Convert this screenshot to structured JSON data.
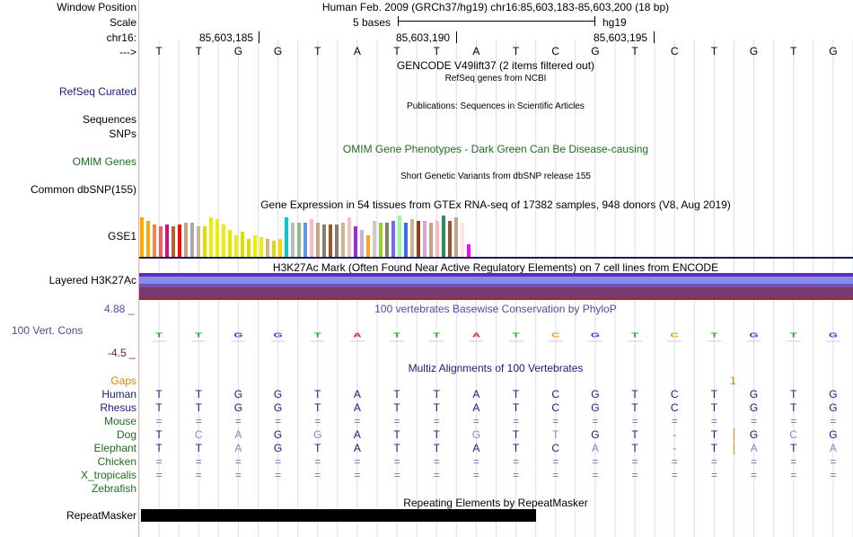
{
  "header": {
    "window_position_label": "Window Position",
    "window_position_value": "Human Feb. 2009 (GRCh37/hg19)   chr16:85,603,183-85,603,200 (18 bp)",
    "scale_label": "Scale",
    "scale_text": "5 bases",
    "scale_assembly": "hg19",
    "chrom_label": "chr16:",
    "coordinates": [
      "85,603,185",
      "85,603,190",
      "85,603,195"
    ],
    "strand_label": "--->"
  },
  "sequence": [
    "T",
    "T",
    "G",
    "G",
    "T",
    "A",
    "T",
    "T",
    "A",
    "T",
    "C",
    "G",
    "T",
    "C",
    "T",
    "G",
    "T",
    "G"
  ],
  "tracks": {
    "gencode_title": "GENCODE V49lift37 (2 items filtered out)",
    "refseq_title": "RefSeq genes from NCBI",
    "refseq_label": "RefSeq Curated",
    "pubs_title": "Publications: Sequences in Scientific Articles",
    "sequences_label": "Sequences",
    "snps_label": "SNPs",
    "omim_title": "OMIM Gene Phenotypes - Dark Green Can Be Disease-causing",
    "omim_label": "OMIM Genes",
    "dbsnp_title": "Short Genetic Variants from dbSNP release 155",
    "dbsnp_label": "Common dbSNP(155)",
    "gtex_title": "Gene Expression in 54 tissues from GTEx RNA-seq of 17382 samples, 948 donors (V8, Aug 2019)",
    "gtex_label": "GSE1",
    "h3k27ac_title": "H3K27Ac Mark (Often Found Near Active Regulatory Elements) on 7 cell lines from ENCODE",
    "h3k27ac_label": "Layered H3K27Ac",
    "cons_title": "100 vertebrates Basewise Conservation by PhyloP",
    "cons_label": "100 Vert. Cons",
    "cons_max": "4.88 _",
    "cons_min": "-4.5 _",
    "multiz_title": "Multiz Alignments of 100 Vertebrates",
    "gaps_label": "Gaps",
    "gaps_mark": "1",
    "repeat_title": "Repeating Elements by RepeatMasker",
    "repeat_label": "RepeatMasker"
  },
  "gtex_bars": [
    {
      "color": "#ffaa00",
      "h": 44
    },
    {
      "color": "#ffaa00",
      "h": 40
    },
    {
      "color": "#ff7f50",
      "h": 36
    },
    {
      "color": "#ff5a5a",
      "h": 34
    },
    {
      "color": "#c71585",
      "h": 36
    },
    {
      "color": "#b5651d",
      "h": 34
    },
    {
      "color": "#ee1111",
      "h": 36
    },
    {
      "color": "#c4a484",
      "h": 38
    },
    {
      "color": "#aaaaaa",
      "h": 38
    },
    {
      "color": "#d2b48c",
      "h": 34
    },
    {
      "color": "#dddd00",
      "h": 34
    },
    {
      "color": "#eeee00",
      "h": 44
    },
    {
      "color": "#eeee00",
      "h": 42
    },
    {
      "color": "#eeee00",
      "h": 36
    },
    {
      "color": "#e5e500",
      "h": 30
    },
    {
      "color": "#eeee00",
      "h": 24
    },
    {
      "color": "#dddd00",
      "h": 28
    },
    {
      "color": "#dddd00",
      "h": 20
    },
    {
      "color": "#eeee00",
      "h": 24
    },
    {
      "color": "#eeee00",
      "h": 22
    },
    {
      "color": "#d2b48c",
      "h": 20
    },
    {
      "color": "#dddd00",
      "h": 18
    },
    {
      "color": "#ffd700",
      "h": 20
    },
    {
      "color": "#00cccc",
      "h": 44
    },
    {
      "color": "#bbbbbb",
      "h": 38
    },
    {
      "color": "#8fbc8f",
      "h": 38
    },
    {
      "color": "#6495ed",
      "h": 38
    },
    {
      "color": "#ffb6c1",
      "h": 42
    },
    {
      "color": "#c4a484",
      "h": 38
    },
    {
      "color": "#8b7d6b",
      "h": 36
    },
    {
      "color": "#a0522d",
      "h": 36
    },
    {
      "color": "#8b7d6b",
      "h": 36
    },
    {
      "color": "#d2b48c",
      "h": 38
    },
    {
      "color": "#f4c2c2",
      "h": 44
    },
    {
      "color": "#9932cc",
      "h": 34
    },
    {
      "color": "#ccaaee",
      "h": 30
    },
    {
      "color": "#f5a623",
      "h": 24
    },
    {
      "color": "#cccccc",
      "h": 40
    },
    {
      "color": "#9acd32",
      "h": 38
    },
    {
      "color": "#8b7d6b",
      "h": 38
    },
    {
      "color": "#7b68ee",
      "h": 40
    },
    {
      "color": "#98fb98",
      "h": 46
    },
    {
      "color": "#4169e1",
      "h": 38
    },
    {
      "color": "#d2b48c",
      "h": 42
    },
    {
      "color": "#8b4513",
      "h": 40
    },
    {
      "color": "#dda0dd",
      "h": 40
    },
    {
      "color": "#c4a484",
      "h": 38
    },
    {
      "color": "#ffb6c1",
      "h": 40
    },
    {
      "color": "#2e8b57",
      "h": 46
    },
    {
      "color": "#a0522d",
      "h": 40
    },
    {
      "color": "#c4a484",
      "h": 44
    },
    {
      "color": "#ffe4e1",
      "h": 38
    },
    {
      "color": "#ff00ff",
      "h": 14
    }
  ],
  "alignments": [
    {
      "species": "Human",
      "bases": [
        "T",
        "T",
        "G",
        "G",
        "T",
        "A",
        "T",
        "T",
        "A",
        "T",
        "C",
        "G",
        "T",
        "C",
        "T",
        "G",
        "T",
        "G"
      ]
    },
    {
      "species": "Rhesus",
      "bases": [
        "T",
        "T",
        "G",
        "G",
        "T",
        "A",
        "T",
        "T",
        "A",
        "T",
        "C",
        "G",
        "T",
        "C",
        "T",
        "G",
        "T",
        "G"
      ]
    },
    {
      "species": "Mouse",
      "bases": [
        "=",
        "=",
        "=",
        "=",
        "=",
        "=",
        "=",
        "=",
        "=",
        "=",
        "=",
        "=",
        "=",
        "=",
        "=",
        "=",
        "=",
        "="
      ]
    },
    {
      "species": "Dog",
      "bases": [
        "T",
        "C",
        "A",
        "G",
        "G",
        "A",
        "T",
        "T",
        "G",
        "T",
        "T",
        "G",
        "T",
        "-",
        "T",
        "G",
        "C",
        "G"
      ]
    },
    {
      "species": "Elephant",
      "bases": [
        "T",
        "T",
        "A",
        "G",
        "T",
        "A",
        "T",
        "T",
        "A",
        "T",
        "C",
        "A",
        "T",
        "-",
        "T",
        "A",
        "T",
        "A"
      ]
    },
    {
      "species": "Chicken",
      "bases": [
        "=",
        "=",
        "=",
        "=",
        "=",
        "=",
        "=",
        "=",
        "=",
        "=",
        "=",
        "=",
        "=",
        "=",
        "=",
        "=",
        "=",
        "="
      ]
    },
    {
      "species": "X_tropicalis",
      "bases": [
        "=",
        "=",
        "=",
        "=",
        "=",
        "=",
        "=",
        "=",
        "=",
        "=",
        "=",
        "=",
        "=",
        "=",
        "=",
        "=",
        "=",
        "="
      ]
    },
    {
      "species": "Zebrafish",
      "bases": [
        "",
        "",
        "",
        "",
        "",
        "",
        "",
        "",
        "",
        "",
        "",
        "",
        "",
        "",
        "",
        "",
        "",
        ""
      ]
    }
  ],
  "colors": {
    "species_label": "#1e6e1e",
    "human_label": "#1a1a7a",
    "gaps": "#d48a00",
    "conservation_bar": "#2b2b6b",
    "base_match": "#1a1a7a",
    "base_mismatch": "#8888bb",
    "h3k27ac_top": "#7a7ae0",
    "h3k27ac_bottom": "#7a3a6e"
  }
}
